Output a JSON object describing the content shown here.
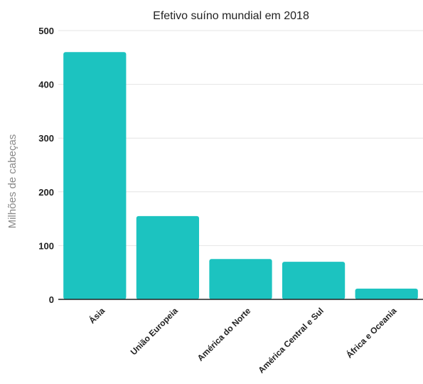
{
  "chart_data": {
    "type": "bar",
    "title": "Efetivo suíno mundial em 2018",
    "xlabel": "",
    "ylabel": "Milhões de cabeças",
    "categories": [
      "Ásia",
      "União Europeia",
      "América do Norte",
      "América Central e Sul",
      "África e Oceania"
    ],
    "values": [
      460,
      155,
      75,
      70,
      20
    ],
    "ylim": [
      0,
      500
    ],
    "yticks": [
      0,
      100,
      200,
      300,
      400,
      500
    ],
    "grid": true,
    "bar_color": "#1cc3c0"
  }
}
